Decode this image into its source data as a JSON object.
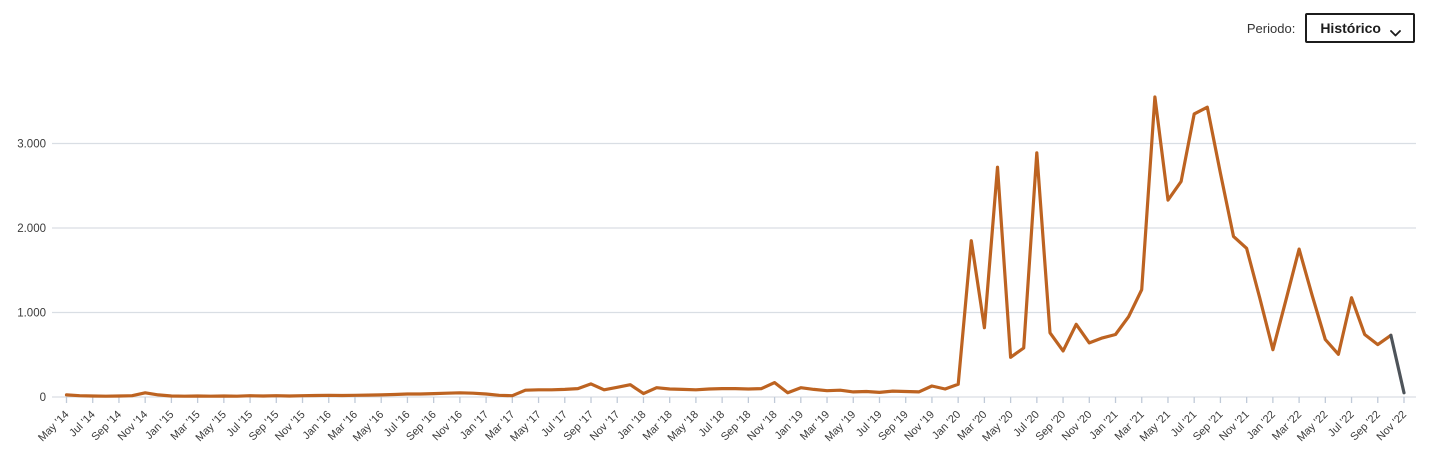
{
  "controls": {
    "period_label": "Periodo:",
    "period_value": "Histórico"
  },
  "chart_data": {
    "type": "line",
    "title": "",
    "xlabel": "",
    "ylabel": "",
    "legend": null,
    "grid": "horizontal",
    "x_tick_every": 2,
    "x_tick_rotation": -45,
    "ylim": [
      0,
      3700
    ],
    "yticks": [
      0,
      1000,
      2000,
      3000
    ],
    "ytick_labels": [
      "0",
      "1.000",
      "2.000",
      "3.000"
    ],
    "line_color": "#bd6321",
    "final_segment_color": "#4e545a",
    "gridline_color": "#d9dee4",
    "tick_color": "#c0cad8",
    "label_color": "#3b3b3b",
    "categories": [
      "May '14",
      "Jun '14",
      "Jul '14",
      "Aug '14",
      "Sep '14",
      "Oct '14",
      "Nov '14",
      "Dec '14",
      "Jan '15",
      "Feb '15",
      "Mar '15",
      "Apr '15",
      "May '15",
      "Jun '15",
      "Jul '15",
      "Aug '15",
      "Sep '15",
      "Oct '15",
      "Nov '15",
      "Dec '15",
      "Jan '16",
      "Feb '16",
      "Mar '16",
      "Apr '16",
      "May '16",
      "Jun '16",
      "Jul '16",
      "Aug '16",
      "Sep '16",
      "Oct '16",
      "Nov '16",
      "Dec '16",
      "Jan '17",
      "Feb '17",
      "Mar '17",
      "Apr '17",
      "May '17",
      "Jun '17",
      "Jul '17",
      "Aug '17",
      "Sep '17",
      "Oct '17",
      "Nov '17",
      "Dec '17",
      "Jan '18",
      "Feb '18",
      "Mar '18",
      "Apr '18",
      "May '18",
      "Jun '18",
      "Jul '18",
      "Aug '18",
      "Sep '18",
      "Oct '18",
      "Nov '18",
      "Dec '18",
      "Jan '19",
      "Feb '19",
      "Mar '19",
      "Apr '19",
      "May '19",
      "Jun '19",
      "Jul '19",
      "Aug '19",
      "Sep '19",
      "Oct '19",
      "Nov '19",
      "Dec '19",
      "Jan '20",
      "Feb '20",
      "Mar '20",
      "Apr '20",
      "May '20",
      "Jun '20",
      "Jul '20",
      "Aug '20",
      "Sep '20",
      "Oct '20",
      "Nov '20",
      "Dec '20",
      "Jan '21",
      "Feb '21",
      "Mar '21",
      "Apr '21",
      "May '21",
      "Jun '21",
      "Jul '21",
      "Aug '21",
      "Sep '21",
      "Oct '21",
      "Nov '21",
      "Dec '21",
      "Jan '22",
      "Feb '22",
      "Mar '22",
      "Apr '22",
      "May '22",
      "Jun '22",
      "Jul '22",
      "Aug '22",
      "Sep '22",
      "Oct '22",
      "Nov '22"
    ],
    "values": [
      25,
      15,
      12,
      10,
      12,
      15,
      50,
      25,
      12,
      10,
      12,
      10,
      12,
      10,
      15,
      12,
      15,
      12,
      15,
      18,
      20,
      18,
      20,
      22,
      25,
      30,
      35,
      35,
      40,
      45,
      50,
      45,
      35,
      20,
      15,
      80,
      85,
      85,
      90,
      100,
      155,
      85,
      115,
      145,
      40,
      110,
      95,
      90,
      85,
      95,
      100,
      100,
      95,
      100,
      170,
      50,
      110,
      90,
      75,
      80,
      60,
      65,
      55,
      70,
      65,
      60,
      130,
      95,
      150,
      1850,
      820,
      2720,
      470,
      580,
      2890,
      760,
      545,
      860,
      640,
      700,
      740,
      950,
      1270,
      3550,
      2330,
      2550,
      3350,
      3430,
      2650,
      1900,
      1760,
      1170,
      560,
      1150,
      1750,
      1200,
      680,
      505,
      1175,
      740,
      620,
      730,
      50
    ],
    "final_segment_note": "last segment (Oct '22 to Nov '22) drawn in gray"
  }
}
